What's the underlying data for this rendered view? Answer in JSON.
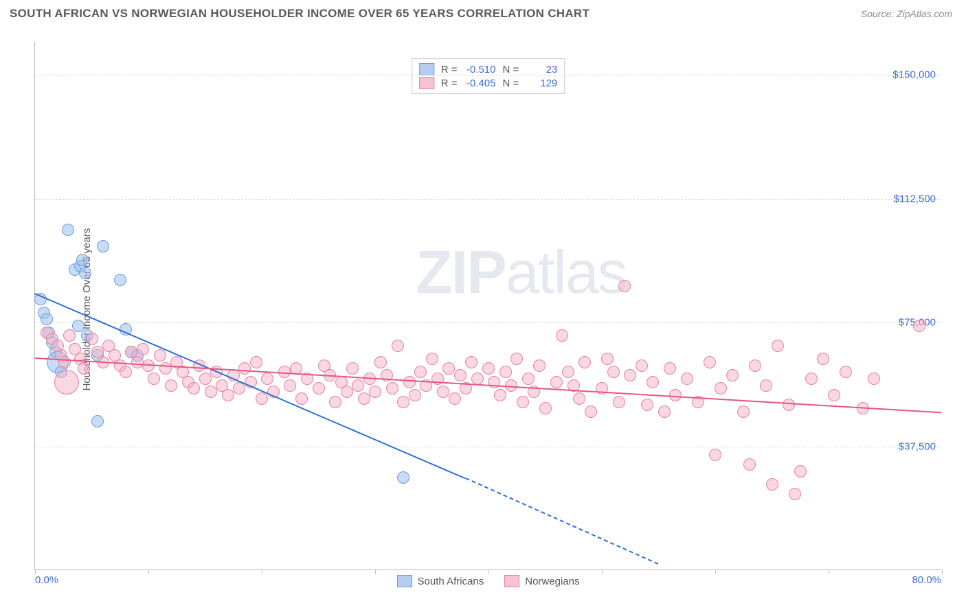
{
  "header": {
    "title": "SOUTH AFRICAN VS NORWEGIAN HOUSEHOLDER INCOME OVER 65 YEARS CORRELATION CHART",
    "source_prefix": "Source: ",
    "source_link": "ZipAtlas.com"
  },
  "chart": {
    "type": "scatter",
    "ylabel": "Householder Income Over 65 years",
    "watermark_bold": "ZIP",
    "watermark_thin": "atlas",
    "watermark_left_pct": 42,
    "watermark_top_pct": 37,
    "background_color": "#ffffff",
    "grid_color": "#d8d8d8",
    "axis_color": "#bbbbbb",
    "tick_label_color": "#3b6fd6",
    "xlim": [
      0,
      80
    ],
    "ylim": [
      0,
      160000
    ],
    "yticks": [
      {
        "value": 37500,
        "label": "$37,500"
      },
      {
        "value": 75000,
        "label": "$75,000"
      },
      {
        "value": 112500,
        "label": "$112,500"
      },
      {
        "value": 150000,
        "label": "$150,000"
      }
    ],
    "x_axis_labels": {
      "left": "0.0%",
      "right": "80.0%"
    },
    "xtick_positions_pct": [
      0,
      10,
      20,
      30,
      40,
      50,
      60,
      70,
      80
    ],
    "legend_top": [
      {
        "swatch_fill": "#b6cdef",
        "swatch_border": "#6d9be0",
        "r_label": "R =",
        "r": "-0.510",
        "n_label": "N =",
        "n": "23"
      },
      {
        "swatch_fill": "#f6c3d1",
        "swatch_border": "#e97fa2",
        "r_label": "R =",
        "r": "-0.405",
        "n_label": "N =",
        "n": "129"
      }
    ],
    "legend_bottom": [
      {
        "swatch_fill": "#b6cdef",
        "swatch_border": "#6d9be0",
        "label": "South Africans"
      },
      {
        "swatch_fill": "#f6c3d1",
        "swatch_border": "#e97fa2",
        "label": "Norwegians"
      }
    ],
    "series": [
      {
        "name": "South Africans",
        "marker_fill": "rgba(157,192,237,0.55)",
        "marker_stroke": "#6d9be0",
        "marker_radius_px": 9,
        "trend": {
          "x1": 0,
          "y1": 84000,
          "x2": 38,
          "y2": 28000,
          "color": "#2f6fd6",
          "dash_from_x": 38,
          "x2_ext": 55,
          "y2_ext": 2000
        },
        "points": [
          {
            "x": 0.5,
            "y": 82000
          },
          {
            "x": 0.8,
            "y": 78000
          },
          {
            "x": 1.0,
            "y": 76000
          },
          {
            "x": 1.2,
            "y": 72000
          },
          {
            "x": 1.5,
            "y": 69000
          },
          {
            "x": 1.8,
            "y": 66000
          },
          {
            "x": 2.0,
            "y": 63000,
            "r": 16
          },
          {
            "x": 2.3,
            "y": 60000
          },
          {
            "x": 2.9,
            "y": 103000
          },
          {
            "x": 3.5,
            "y": 91000
          },
          {
            "x": 4.0,
            "y": 92000
          },
          {
            "x": 4.2,
            "y": 94000
          },
          {
            "x": 4.4,
            "y": 90000
          },
          {
            "x": 3.8,
            "y": 74000
          },
          {
            "x": 4.6,
            "y": 71000
          },
          {
            "x": 5.5,
            "y": 65000
          },
          {
            "x": 6.0,
            "y": 98000
          },
          {
            "x": 7.5,
            "y": 88000
          },
          {
            "x": 8.0,
            "y": 73000
          },
          {
            "x": 5.5,
            "y": 45000
          },
          {
            "x": 8.5,
            "y": 66000
          },
          {
            "x": 9.0,
            "y": 65000
          },
          {
            "x": 32.5,
            "y": 28000
          }
        ]
      },
      {
        "name": "Norwegians",
        "marker_fill": "rgba(244,178,198,0.5)",
        "marker_stroke": "#e97fa2",
        "marker_radius_px": 9,
        "trend": {
          "x1": 0,
          "y1": 64500,
          "x2": 80,
          "y2": 48000,
          "color": "#e5567f"
        },
        "points": [
          {
            "x": 1.0,
            "y": 72000
          },
          {
            "x": 1.5,
            "y": 70000
          },
          {
            "x": 2.0,
            "y": 68000
          },
          {
            "x": 2.3,
            "y": 65000
          },
          {
            "x": 2.6,
            "y": 63000
          },
          {
            "x": 2.8,
            "y": 57000,
            "r": 18
          },
          {
            "x": 3.0,
            "y": 71000
          },
          {
            "x": 3.5,
            "y": 67000
          },
          {
            "x": 4.0,
            "y": 64000
          },
          {
            "x": 4.3,
            "y": 61000
          },
          {
            "x": 5.0,
            "y": 70000
          },
          {
            "x": 5.5,
            "y": 66000
          },
          {
            "x": 6.0,
            "y": 63000
          },
          {
            "x": 6.5,
            "y": 68000
          },
          {
            "x": 7.0,
            "y": 65000
          },
          {
            "x": 7.5,
            "y": 62000
          },
          {
            "x": 8.0,
            "y": 60000
          },
          {
            "x": 8.5,
            "y": 66000
          },
          {
            "x": 9.0,
            "y": 63000
          },
          {
            "x": 9.5,
            "y": 67000
          },
          {
            "x": 10.0,
            "y": 62000
          },
          {
            "x": 10.5,
            "y": 58000
          },
          {
            "x": 11.0,
            "y": 65000
          },
          {
            "x": 11.5,
            "y": 61000
          },
          {
            "x": 12.0,
            "y": 56000
          },
          {
            "x": 12.5,
            "y": 63000
          },
          {
            "x": 13.0,
            "y": 60000
          },
          {
            "x": 13.5,
            "y": 57000
          },
          {
            "x": 14.0,
            "y": 55000
          },
          {
            "x": 14.5,
            "y": 62000
          },
          {
            "x": 15.0,
            "y": 58000
          },
          {
            "x": 15.5,
            "y": 54000
          },
          {
            "x": 16.0,
            "y": 60000
          },
          {
            "x": 16.5,
            "y": 56000
          },
          {
            "x": 17.0,
            "y": 53000
          },
          {
            "x": 17.5,
            "y": 59000
          },
          {
            "x": 18.0,
            "y": 55000
          },
          {
            "x": 18.5,
            "y": 61000
          },
          {
            "x": 19.0,
            "y": 57000
          },
          {
            "x": 19.5,
            "y": 63000
          },
          {
            "x": 20.0,
            "y": 52000
          },
          {
            "x": 20.5,
            "y": 58000
          },
          {
            "x": 21.0,
            "y": 54000
          },
          {
            "x": 22.0,
            "y": 60000
          },
          {
            "x": 22.5,
            "y": 56000
          },
          {
            "x": 23.0,
            "y": 61000
          },
          {
            "x": 23.5,
            "y": 52000
          },
          {
            "x": 24.0,
            "y": 58000
          },
          {
            "x": 25.0,
            "y": 55000
          },
          {
            "x": 25.5,
            "y": 62000
          },
          {
            "x": 26.0,
            "y": 59000
          },
          {
            "x": 26.5,
            "y": 51000
          },
          {
            "x": 27.0,
            "y": 57000
          },
          {
            "x": 27.5,
            "y": 54000
          },
          {
            "x": 28.0,
            "y": 61000
          },
          {
            "x": 28.5,
            "y": 56000
          },
          {
            "x": 29.0,
            "y": 52000
          },
          {
            "x": 29.5,
            "y": 58000
          },
          {
            "x": 30.0,
            "y": 54000
          },
          {
            "x": 30.5,
            "y": 63000
          },
          {
            "x": 31.0,
            "y": 59000
          },
          {
            "x": 31.5,
            "y": 55000
          },
          {
            "x": 32.0,
            "y": 68000
          },
          {
            "x": 32.5,
            "y": 51000
          },
          {
            "x": 33.0,
            "y": 57000
          },
          {
            "x": 33.5,
            "y": 53000
          },
          {
            "x": 34.0,
            "y": 60000
          },
          {
            "x": 34.5,
            "y": 56000
          },
          {
            "x": 35.0,
            "y": 64000
          },
          {
            "x": 35.5,
            "y": 58000
          },
          {
            "x": 36.0,
            "y": 54000
          },
          {
            "x": 36.5,
            "y": 61000
          },
          {
            "x": 37.0,
            "y": 52000
          },
          {
            "x": 37.5,
            "y": 59000
          },
          {
            "x": 38.0,
            "y": 55000
          },
          {
            "x": 38.5,
            "y": 63000
          },
          {
            "x": 39.0,
            "y": 58000
          },
          {
            "x": 40.0,
            "y": 61000
          },
          {
            "x": 40.5,
            "y": 57000
          },
          {
            "x": 41.0,
            "y": 53000
          },
          {
            "x": 41.5,
            "y": 60000
          },
          {
            "x": 42.0,
            "y": 56000
          },
          {
            "x": 42.5,
            "y": 64000
          },
          {
            "x": 43.0,
            "y": 51000
          },
          {
            "x": 43.5,
            "y": 58000
          },
          {
            "x": 44.0,
            "y": 54000
          },
          {
            "x": 44.5,
            "y": 62000
          },
          {
            "x": 45.0,
            "y": 49000
          },
          {
            "x": 46.0,
            "y": 57000
          },
          {
            "x": 46.5,
            "y": 71000
          },
          {
            "x": 47.0,
            "y": 60000
          },
          {
            "x": 47.5,
            "y": 56000
          },
          {
            "x": 48.0,
            "y": 52000
          },
          {
            "x": 48.5,
            "y": 63000
          },
          {
            "x": 49.0,
            "y": 48000
          },
          {
            "x": 50.0,
            "y": 55000
          },
          {
            "x": 50.5,
            "y": 64000
          },
          {
            "x": 51.0,
            "y": 60000
          },
          {
            "x": 51.5,
            "y": 51000
          },
          {
            "x": 52.0,
            "y": 86000
          },
          {
            "x": 52.5,
            "y": 59000
          },
          {
            "x": 53.5,
            "y": 62000
          },
          {
            "x": 54.0,
            "y": 50000
          },
          {
            "x": 54.5,
            "y": 57000
          },
          {
            "x": 55.5,
            "y": 48000
          },
          {
            "x": 56.0,
            "y": 61000
          },
          {
            "x": 56.5,
            "y": 53000
          },
          {
            "x": 57.5,
            "y": 58000
          },
          {
            "x": 58.5,
            "y": 51000
          },
          {
            "x": 59.5,
            "y": 63000
          },
          {
            "x": 60.0,
            "y": 35000
          },
          {
            "x": 60.5,
            "y": 55000
          },
          {
            "x": 61.5,
            "y": 59000
          },
          {
            "x": 62.5,
            "y": 48000
          },
          {
            "x": 63.0,
            "y": 32000
          },
          {
            "x": 63.5,
            "y": 62000
          },
          {
            "x": 64.5,
            "y": 56000
          },
          {
            "x": 65.0,
            "y": 26000
          },
          {
            "x": 65.5,
            "y": 68000
          },
          {
            "x": 66.5,
            "y": 50000
          },
          {
            "x": 67.0,
            "y": 23000
          },
          {
            "x": 67.5,
            "y": 30000
          },
          {
            "x": 68.5,
            "y": 58000
          },
          {
            "x": 69.5,
            "y": 64000
          },
          {
            "x": 70.5,
            "y": 53000
          },
          {
            "x": 71.5,
            "y": 60000
          },
          {
            "x": 73.0,
            "y": 49000
          },
          {
            "x": 74.0,
            "y": 58000
          },
          {
            "x": 78.0,
            "y": 74000
          }
        ]
      }
    ]
  }
}
